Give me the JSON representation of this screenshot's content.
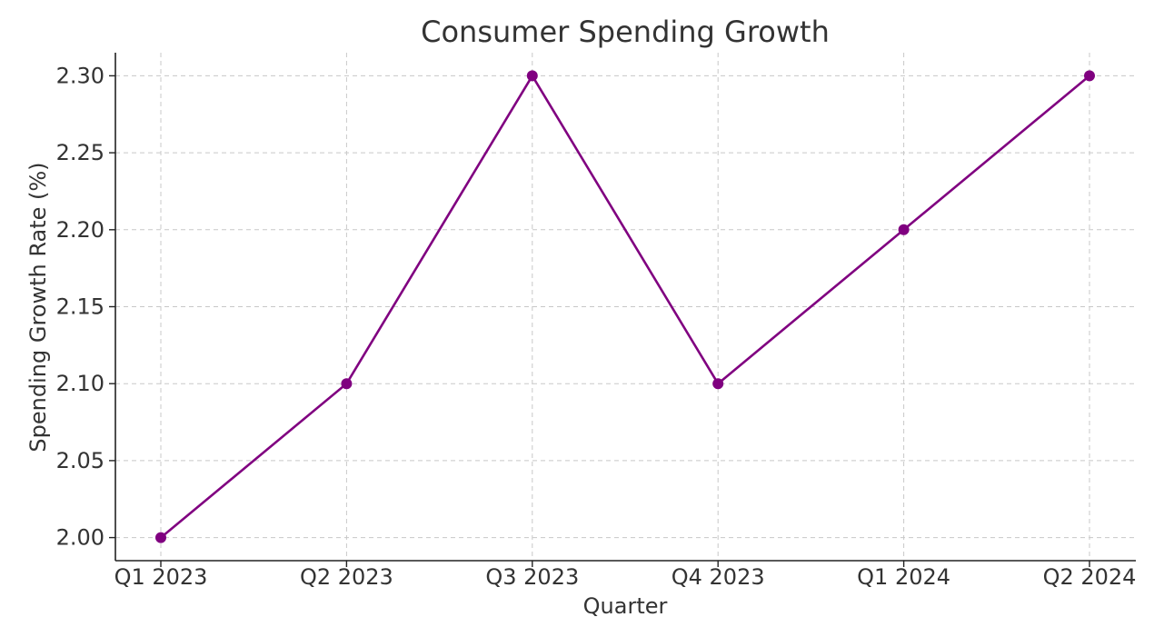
{
  "chart_data": {
    "type": "line",
    "title": "Consumer Spending Growth",
    "xlabel": "Quarter",
    "ylabel": "Spending Growth Rate (%)",
    "categories": [
      "Q1 2023",
      "Q2 2023",
      "Q3 2023",
      "Q4 2023",
      "Q1 2024",
      "Q2 2024"
    ],
    "series": [
      {
        "name": "Spending Growth Rate",
        "values": [
          2.0,
          2.1,
          2.3,
          2.1,
          2.2,
          2.3
        ],
        "color": "#800080",
        "marker": "circle"
      }
    ],
    "yticks": [
      "2.00",
      "2.05",
      "2.10",
      "2.15",
      "2.20",
      "2.25",
      "2.30"
    ],
    "ylim": [
      1.985,
      2.315
    ],
    "grid": true,
    "legend": "none"
  }
}
